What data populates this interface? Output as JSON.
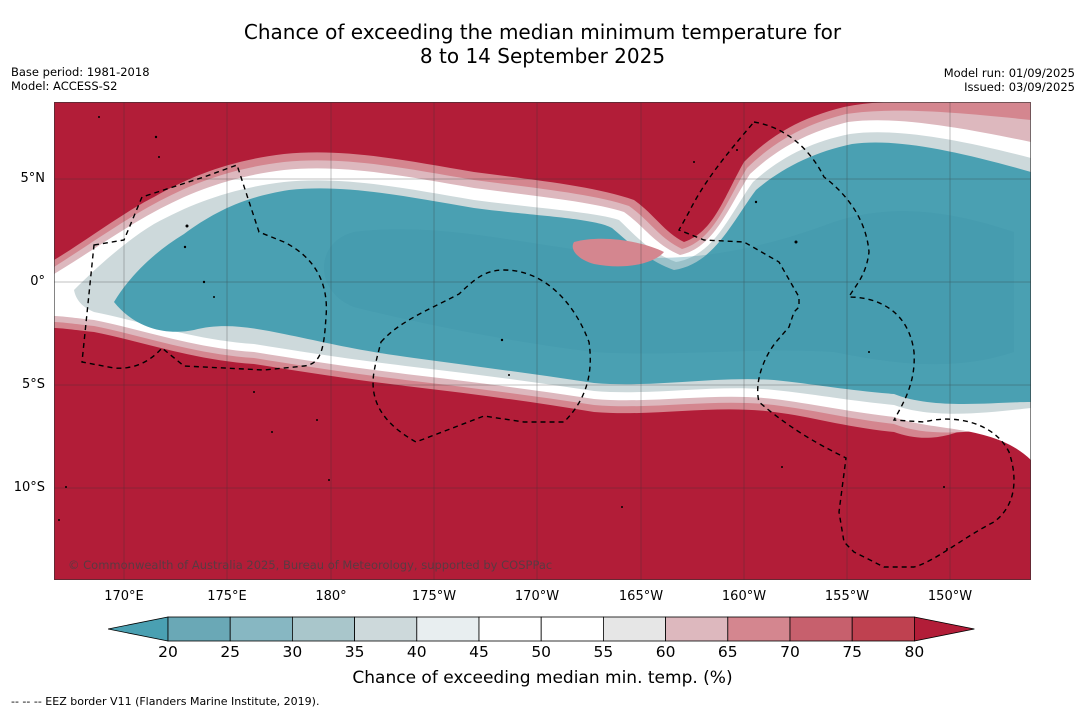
{
  "title_line1": "Chance of exceeding the median minimum temperature for",
  "title_line2": "8 to 14 September 2025",
  "base_period": "Base period: 1981-2018",
  "model": "Model: ACCESS-S2",
  "model_run": "Model run: 01/09/2025",
  "issued": "Issued: 03/09/2025",
  "lat_ticks": [
    "5°N",
    "0°",
    "5°S",
    "10°S"
  ],
  "lon_ticks": [
    "170°E",
    "175°E",
    "180°",
    "175°W",
    "170°W",
    "165°W",
    "160°W",
    "155°W",
    "150°W"
  ],
  "colorbar": {
    "title": "Chance of exceeding median min. temp. (%)",
    "labels": [
      "20",
      "25",
      "30",
      "35",
      "40",
      "45",
      "50",
      "55",
      "60",
      "65",
      "70",
      "75",
      "80"
    ],
    "colors": [
      "#4aa0b2",
      "#6aa8b6",
      "#87b7c2",
      "#a9c6cb",
      "#cdd9db",
      "#e8eef0",
      "#ffffff",
      "#ffffff",
      "#e6e6e6",
      "#ddb8be",
      "#d4868f",
      "#c7606d",
      "#bf4150",
      "#b21d38"
    ]
  },
  "copyright": "© Commonwealth of Australia 2025, Bureau of Meteorology, supported by COSPPac",
  "footnote": "--  --  -- EEZ border V11 (Flanders Marine Institute, 2019)."
}
